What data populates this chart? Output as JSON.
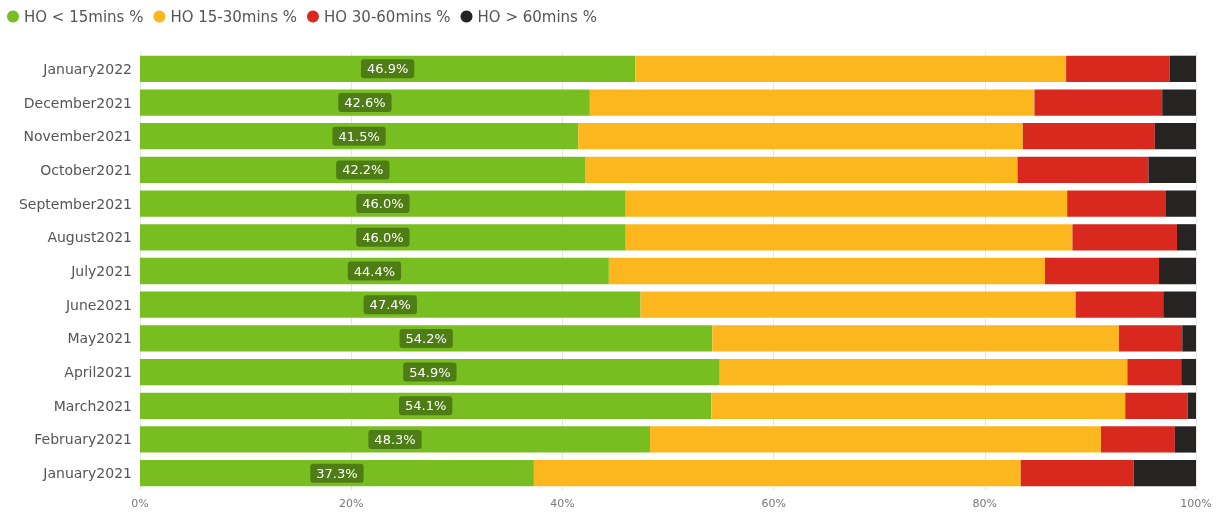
{
  "chart_data": {
    "type": "bar",
    "orientation": "horizontal",
    "stacked": true,
    "legend": "top left",
    "grid": "x",
    "categories": [
      "January2022",
      "December2021",
      "November2021",
      "October2021",
      "September2021",
      "August2021",
      "July2021",
      "June2021",
      "May2021",
      "April2021",
      "March2021",
      "February2021",
      "January2021"
    ],
    "xlim": [
      0,
      100
    ],
    "xticks": [
      {
        "value": 0,
        "label": "0%"
      },
      {
        "value": 20,
        "label": "20%"
      },
      {
        "value": 40,
        "label": "40%"
      },
      {
        "value": 60,
        "label": "60%"
      },
      {
        "value": 80,
        "label": "80%"
      },
      {
        "value": 100,
        "label": "100%"
      }
    ],
    "series": [
      {
        "name": "HO < 15mins %",
        "color": "#78be20",
        "values": [
          46.9,
          42.6,
          41.5,
          42.2,
          46.0,
          46.0,
          44.4,
          47.4,
          54.2,
          54.9,
          54.1,
          48.3,
          37.3
        ],
        "value_labels": [
          "46.9%",
          "42.6%",
          "41.5%",
          "42.2%",
          "46.0%",
          "46.0%",
          "44.4%",
          "47.4%",
          "54.2%",
          "54.9%",
          "54.1%",
          "48.3%",
          "37.3%"
        ]
      },
      {
        "name": "HO 15-30mins %",
        "color": "#fdb71e",
        "values": [
          40.8,
          42.1,
          42.1,
          40.9,
          41.8,
          42.3,
          41.3,
          41.2,
          38.5,
          38.6,
          39.2,
          42.7,
          46.1
        ]
      },
      {
        "name": "HO 30-60mins %",
        "color": "#d9291e",
        "values": [
          9.8,
          12.1,
          12.5,
          12.4,
          9.3,
          9.9,
          10.8,
          8.3,
          6.0,
          5.1,
          5.9,
          7.0,
          10.7
        ]
      },
      {
        "name": "HO > 60mins %",
        "color": "#252423",
        "values": [
          2.5,
          3.2,
          3.9,
          4.5,
          2.9,
          1.8,
          3.5,
          3.1,
          1.3,
          1.4,
          0.8,
          2.0,
          5.9
        ]
      }
    ]
  }
}
